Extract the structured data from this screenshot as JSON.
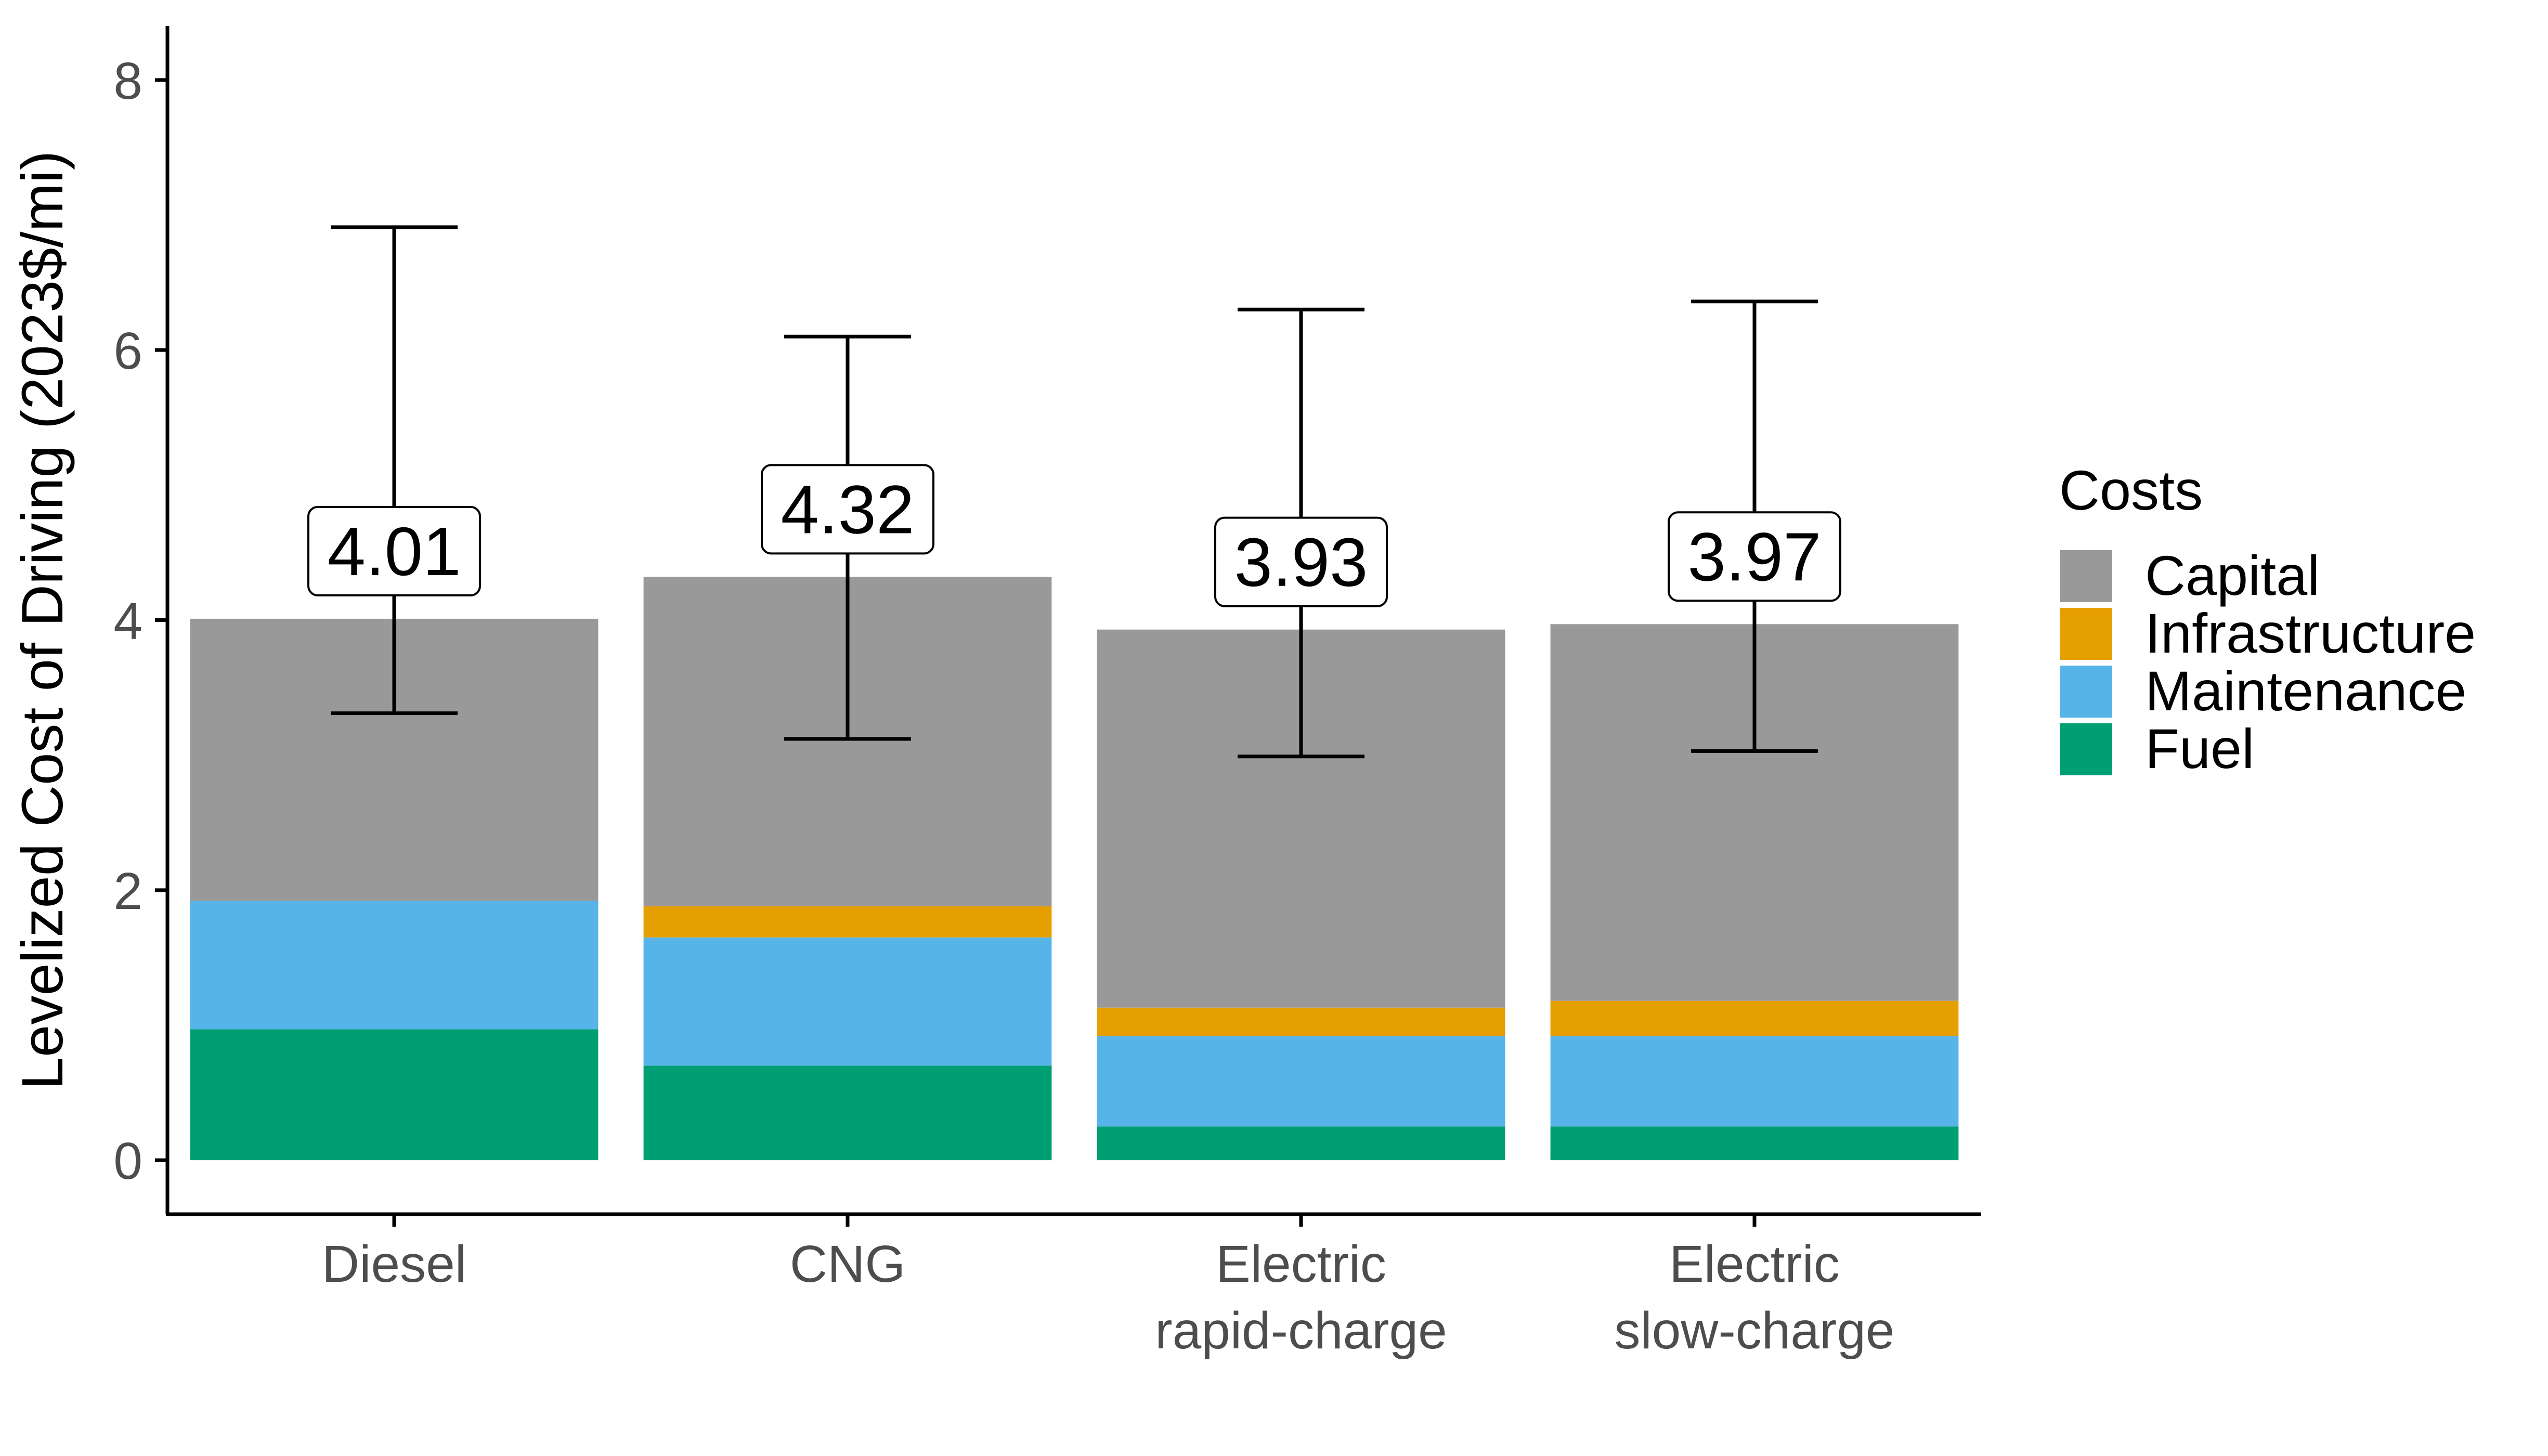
{
  "chart_data": {
    "type": "bar",
    "stacked": true,
    "title": "",
    "xlabel": "",
    "ylabel": "Levelized Cost of Driving (2023$/mi)",
    "ylim": [
      -0.4,
      8.4
    ],
    "yticks": [
      "0",
      "2",
      "4",
      "6",
      "8"
    ],
    "grid": false,
    "legend_title": "Costs",
    "legend_position": "right",
    "categories": [
      {
        "line1": "Diesel",
        "line2": ""
      },
      {
        "line1": "CNG",
        "line2": ""
      },
      {
        "line1": "Electric",
        "line2": "rapid-charge"
      },
      {
        "line1": "Electric",
        "line2": "slow-charge"
      }
    ],
    "series": [
      {
        "name": "Fuel",
        "color": "#009E73",
        "values": [
          0.97,
          0.7,
          0.25,
          0.25
        ]
      },
      {
        "name": "Maintenance",
        "color": "#56B4E9",
        "values": [
          0.95,
          0.95,
          0.67,
          0.67
        ]
      },
      {
        "name": "Infrastructure",
        "color": "#E69F00",
        "values": [
          0.0,
          0.23,
          0.21,
          0.26
        ]
      },
      {
        "name": "Capital",
        "color": "#999999",
        "values": [
          2.09,
          2.44,
          2.8,
          2.79
        ]
      }
    ],
    "legend_order": [
      "Capital",
      "Infrastructure",
      "Maintenance",
      "Fuel"
    ],
    "totals": [
      "4.01",
      "4.32",
      "3.93",
      "3.97"
    ],
    "total_values": [
      4.01,
      4.32,
      3.93,
      3.97
    ],
    "error_bars": [
      {
        "low": 3.31,
        "high": 6.91
      },
      {
        "low": 3.12,
        "high": 6.1
      },
      {
        "low": 2.99,
        "high": 6.3
      },
      {
        "low": 3.03,
        "high": 6.36
      }
    ]
  }
}
